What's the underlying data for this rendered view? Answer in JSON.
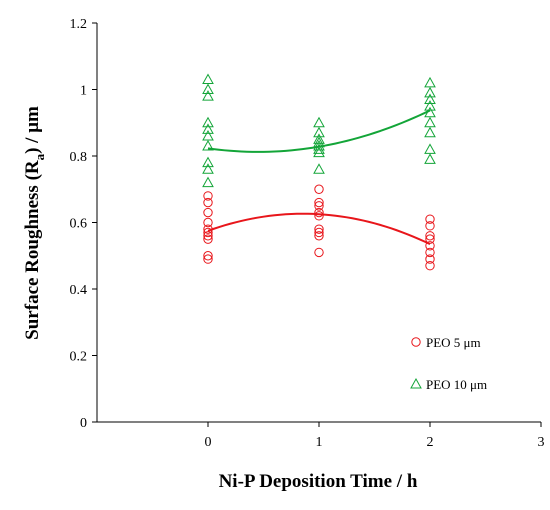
{
  "chart_data": {
    "type": "scatter",
    "xlabel": "Ni-P Deposition Time  / h",
    "ylabel": "Surface Roughness (R",
    "ylabel_sub": "a",
    "ylabel_unit": ") / μm",
    "xlim": [
      -1,
      3
    ],
    "ylim": [
      0,
      1.2
    ],
    "x_ticks": [
      0,
      1,
      2,
      3
    ],
    "y_ticks": [
      0,
      0.2,
      0.4,
      0.6,
      0.8,
      1,
      1.2
    ],
    "x_tick_labels": [
      "0",
      "1",
      "2",
      "3"
    ],
    "y_tick_labels": [
      "0",
      "0.2",
      "0.4",
      "0.6",
      "0.8",
      "1",
      "1.2"
    ],
    "legend_position": "bottom-right",
    "series": [
      {
        "name": "PEO 5 μm",
        "marker": "circle",
        "color": "#e8161b",
        "points": [
          [
            0,
            0.49
          ],
          [
            0,
            0.5
          ],
          [
            0,
            0.55
          ],
          [
            0,
            0.56
          ],
          [
            0,
            0.57
          ],
          [
            0,
            0.58
          ],
          [
            0,
            0.6
          ],
          [
            0,
            0.63
          ],
          [
            0,
            0.66
          ],
          [
            0,
            0.68
          ],
          [
            1,
            0.51
          ],
          [
            1,
            0.56
          ],
          [
            1,
            0.57
          ],
          [
            1,
            0.58
          ],
          [
            1,
            0.62
          ],
          [
            1,
            0.63
          ],
          [
            1,
            0.65
          ],
          [
            1,
            0.66
          ],
          [
            1,
            0.7
          ],
          [
            2,
            0.47
          ],
          [
            2,
            0.49
          ],
          [
            2,
            0.51
          ],
          [
            2,
            0.53
          ],
          [
            2,
            0.55
          ],
          [
            2,
            0.56
          ],
          [
            2,
            0.59
          ],
          [
            2,
            0.61
          ]
        ],
        "trend": [
          0.575,
          0.625,
          0.535
        ]
      },
      {
        "name": "PEO 10 μm",
        "marker": "triangle",
        "color": "#13a538",
        "points": [
          [
            0,
            0.72
          ],
          [
            0,
            0.76
          ],
          [
            0,
            0.78
          ],
          [
            0,
            0.83
          ],
          [
            0,
            0.86
          ],
          [
            0,
            0.88
          ],
          [
            0,
            0.9
          ],
          [
            0,
            0.98
          ],
          [
            0,
            1.0
          ],
          [
            0,
            1.03
          ],
          [
            1,
            0.76
          ],
          [
            1,
            0.81
          ],
          [
            1,
            0.82
          ],
          [
            1,
            0.83
          ],
          [
            1,
            0.84
          ],
          [
            1,
            0.85
          ],
          [
            1,
            0.87
          ],
          [
            1,
            0.9
          ],
          [
            2,
            0.79
          ],
          [
            2,
            0.82
          ],
          [
            2,
            0.87
          ],
          [
            2,
            0.9
          ],
          [
            2,
            0.93
          ],
          [
            2,
            0.95
          ],
          [
            2,
            0.97
          ],
          [
            2,
            0.99
          ],
          [
            2,
            1.02
          ]
        ],
        "trend": [
          0.823,
          0.828,
          0.937
        ]
      }
    ]
  }
}
